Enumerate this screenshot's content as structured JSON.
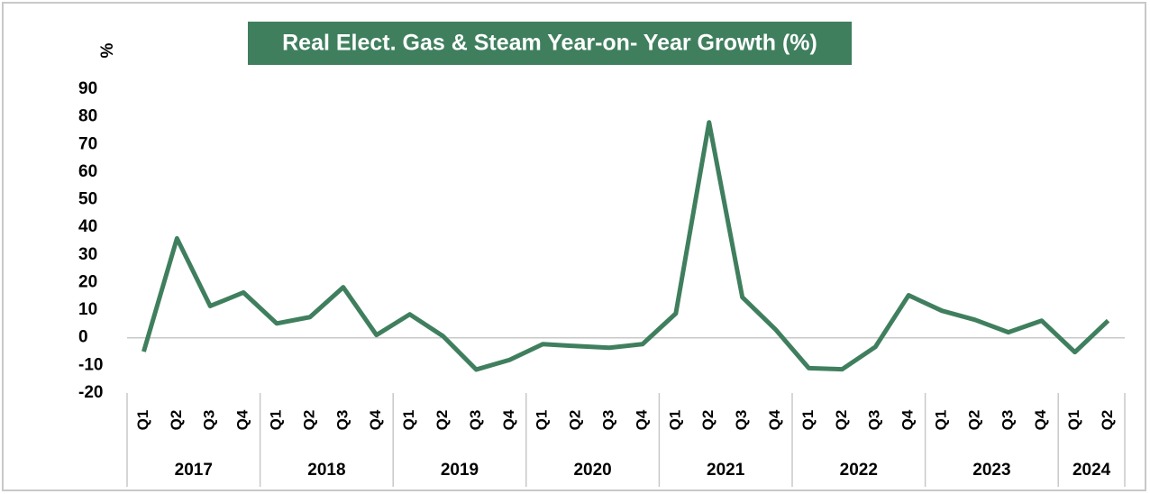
{
  "chart_data": {
    "type": "line",
    "title": "Real Elect. Gas & Steam Year-on- Year Growth (%)",
    "y_label": "%",
    "groups": [
      {
        "label": "2017",
        "categories": [
          "Q1",
          "Q2",
          "Q3",
          "Q4"
        ]
      },
      {
        "label": "2018",
        "categories": [
          "Q1",
          "Q2",
          "Q3",
          "Q4"
        ]
      },
      {
        "label": "2019",
        "categories": [
          "Q1",
          "Q2",
          "Q3",
          "Q4"
        ]
      },
      {
        "label": "2020",
        "categories": [
          "Q1",
          "Q2",
          "Q3",
          "Q4"
        ]
      },
      {
        "label": "2021",
        "categories": [
          "Q1",
          "Q2",
          "Q3",
          "Q4"
        ]
      },
      {
        "label": "2022",
        "categories": [
          "Q1",
          "Q2",
          "Q3",
          "Q4"
        ]
      },
      {
        "label": "2023",
        "categories": [
          "Q1",
          "Q2",
          "Q3",
          "Q4"
        ]
      },
      {
        "label": "2024",
        "categories": [
          "Q1",
          "Q2"
        ]
      }
    ],
    "values": [
      -5,
      36,
      11.5,
      16.4,
      5.2,
      7.5,
      18.3,
      1,
      8.5,
      0.6,
      -11.5,
      -8,
      -2.3,
      -3,
      -3.6,
      -2.3,
      8.8,
      78,
      14.7,
      3,
      -11,
      -11.4,
      -3.3,
      15.4,
      9.8,
      6.5,
      2,
      6.2,
      -5.2,
      6.2
    ],
    "color": "#3f7f5e",
    "ylim": [
      -20,
      90
    ],
    "yticks": [
      -20,
      -10,
      0,
      10,
      20,
      30,
      40,
      50,
      60,
      70,
      80,
      90
    ],
    "grid": false
  }
}
